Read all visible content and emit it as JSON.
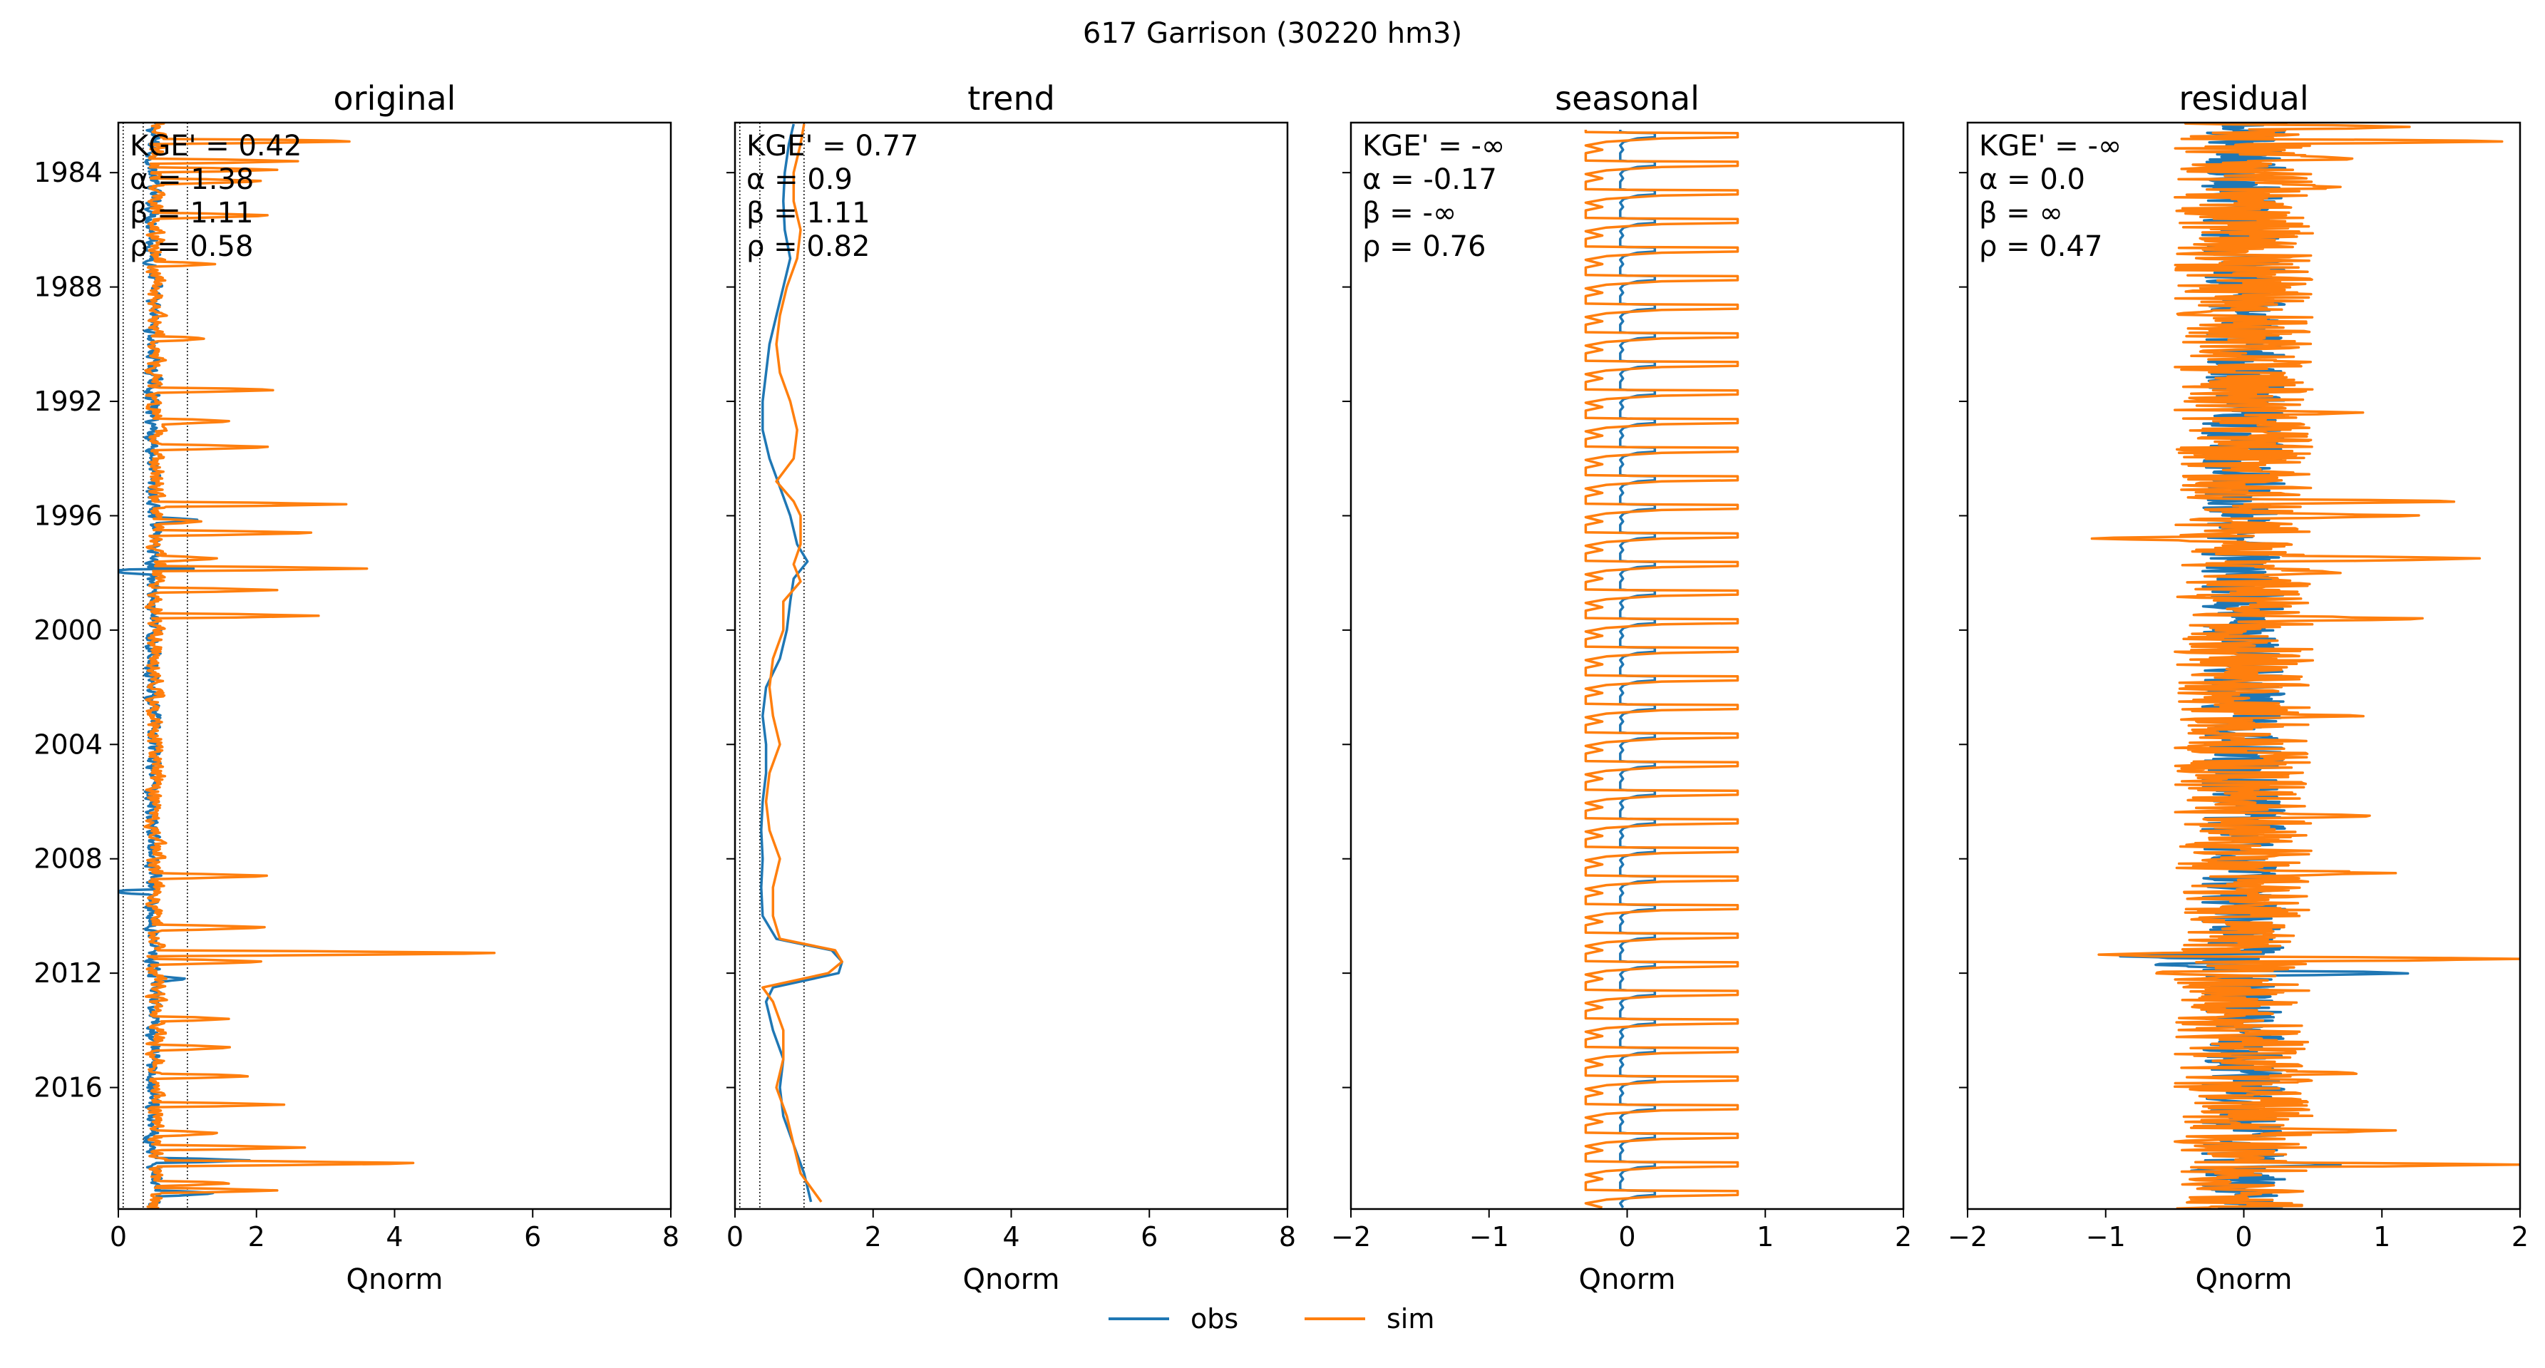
{
  "suptitle": "617  Garrison (30220 hm3)",
  "legend": {
    "obs_label": "obs",
    "sim_label": "sim"
  },
  "colors": {
    "obs": "#1f77b4",
    "sim": "#ff7f0e",
    "axis": "#000000",
    "background": "#ffffff"
  },
  "chart_data": [
    {
      "type": "line",
      "title": "original",
      "xlabel": "Qnorm",
      "ylabel": "",
      "orientation": "vertical-time",
      "xlim": [
        0,
        8
      ],
      "x_ticks": [
        "0",
        "2",
        "4",
        "6",
        "8"
      ],
      "y_ticks": [
        "1984",
        "1988",
        "1992",
        "1996",
        "2000",
        "2004",
        "2008",
        "2012",
        "2016"
      ],
      "ylim": [
        "1982-04",
        "2020-04"
      ],
      "reference_lines_x": [
        0.07,
        0.36,
        1.0
      ],
      "stats": [
        "KGE' = 0.42",
        "α = 1.38",
        "β = 1.11",
        "ρ = 0.58"
      ],
      "series": [
        {
          "name": "obs",
          "profile": "spiky",
          "base": 0.5,
          "spread": 0.16,
          "events": [
            [
              1996.15,
              1.2
            ],
            [
              1997.9,
              1.55
            ],
            [
              1997.95,
              -0.2
            ],
            [
              2009.15,
              -0.2
            ],
            [
              2012.2,
              1.0
            ],
            [
              2018.55,
              1.9
            ],
            [
              2019.7,
              1.45
            ]
          ]
        },
        {
          "name": "sim",
          "profile": "spiky",
          "base": 0.55,
          "spread": 0.2,
          "events": [
            [
              1982.9,
              3.6
            ],
            [
              1983.6,
              2.6
            ],
            [
              1983.9,
              2.3
            ],
            [
              1984.3,
              2.2
            ],
            [
              1985.5,
              2.3
            ],
            [
              1987.2,
              1.4
            ],
            [
              1989.8,
              1.3
            ],
            [
              1991.6,
              2.4
            ],
            [
              1992.7,
              1.7
            ],
            [
              1993.6,
              2.3
            ],
            [
              1995.6,
              3.3
            ],
            [
              1996.2,
              1.2
            ],
            [
              1996.6,
              3.0
            ],
            [
              1997.5,
              1.5
            ],
            [
              1997.85,
              3.6
            ],
            [
              1998.6,
              2.3
            ],
            [
              1999.5,
              2.9
            ],
            [
              2008.6,
              2.3
            ],
            [
              2010.4,
              2.25
            ],
            [
              2011.3,
              5.9
            ],
            [
              2011.6,
              2.2
            ],
            [
              2013.6,
              1.6
            ],
            [
              2014.6,
              1.7
            ],
            [
              2015.6,
              2.0
            ],
            [
              2016.6,
              2.4
            ],
            [
              2017.6,
              1.5
            ],
            [
              2018.1,
              2.7
            ],
            [
              2018.65,
              4.6
            ],
            [
              2019.35,
              1.7
            ],
            [
              2019.6,
              2.3
            ]
          ]
        }
      ]
    },
    {
      "type": "line",
      "title": "trend",
      "xlabel": "Qnorm",
      "ylabel": "",
      "orientation": "vertical-time",
      "xlim": [
        0,
        8
      ],
      "x_ticks": [
        "0",
        "2",
        "4",
        "6",
        "8"
      ],
      "y_ticks": [],
      "ylim": [
        "1982-04",
        "2020-04"
      ],
      "reference_lines_x": [
        0.07,
        0.36,
        1.0
      ],
      "stats": [
        "KGE' = 0.77",
        "α = 0.9",
        "β = 1.11",
        "ρ = 0.82"
      ],
      "series": [
        {
          "name": "obs",
          "profile": "smooth",
          "points": [
            [
              1982.3,
              0.85
            ],
            [
              1983.0,
              0.78
            ],
            [
              1984.0,
              0.72
            ],
            [
              1985.0,
              0.7
            ],
            [
              1986.0,
              0.72
            ],
            [
              1987.0,
              0.8
            ],
            [
              1988.0,
              0.7
            ],
            [
              1989.0,
              0.6
            ],
            [
              1990.0,
              0.5
            ],
            [
              1991.0,
              0.45
            ],
            [
              1992.0,
              0.4
            ],
            [
              1993.0,
              0.4
            ],
            [
              1994.0,
              0.5
            ],
            [
              1995.0,
              0.65
            ],
            [
              1996.0,
              0.8
            ],
            [
              1997.0,
              0.9
            ],
            [
              1997.6,
              1.05
            ],
            [
              1998.2,
              0.85
            ],
            [
              1999.0,
              0.8
            ],
            [
              2000.0,
              0.75
            ],
            [
              2001.0,
              0.65
            ],
            [
              2002.0,
              0.45
            ],
            [
              2003.0,
              0.4
            ],
            [
              2004.0,
              0.45
            ],
            [
              2005.0,
              0.45
            ],
            [
              2006.0,
              0.4
            ],
            [
              2007.0,
              0.38
            ],
            [
              2008.0,
              0.4
            ],
            [
              2009.0,
              0.38
            ],
            [
              2010.0,
              0.4
            ],
            [
              2010.8,
              0.6
            ],
            [
              2011.2,
              1.4
            ],
            [
              2011.6,
              1.55
            ],
            [
              2012.0,
              1.5
            ],
            [
              2012.5,
              0.55
            ],
            [
              2013.0,
              0.45
            ],
            [
              2014.0,
              0.55
            ],
            [
              2015.0,
              0.7
            ],
            [
              2016.0,
              0.65
            ],
            [
              2017.0,
              0.7
            ],
            [
              2018.0,
              0.85
            ],
            [
              2019.0,
              1.0
            ],
            [
              2020.0,
              1.1
            ]
          ]
        },
        {
          "name": "sim",
          "profile": "smooth",
          "points": [
            [
              1982.3,
              1.0
            ],
            [
              1983.0,
              0.95
            ],
            [
              1984.0,
              0.85
            ],
            [
              1985.0,
              0.85
            ],
            [
              1986.0,
              0.95
            ],
            [
              1987.0,
              0.9
            ],
            [
              1988.0,
              0.75
            ],
            [
              1989.0,
              0.65
            ],
            [
              1990.0,
              0.6
            ],
            [
              1991.0,
              0.65
            ],
            [
              1992.0,
              0.8
            ],
            [
              1993.0,
              0.9
            ],
            [
              1994.0,
              0.85
            ],
            [
              1994.8,
              0.6
            ],
            [
              1995.5,
              0.85
            ],
            [
              1996.0,
              0.95
            ],
            [
              1997.0,
              0.95
            ],
            [
              1997.7,
              0.85
            ],
            [
              1998.3,
              0.95
            ],
            [
              1999.0,
              0.7
            ],
            [
              2000.0,
              0.7
            ],
            [
              2001.0,
              0.55
            ],
            [
              2002.0,
              0.5
            ],
            [
              2003.0,
              0.55
            ],
            [
              2004.0,
              0.65
            ],
            [
              2005.0,
              0.5
            ],
            [
              2006.0,
              0.45
            ],
            [
              2007.0,
              0.5
            ],
            [
              2008.0,
              0.65
            ],
            [
              2009.0,
              0.55
            ],
            [
              2010.0,
              0.55
            ],
            [
              2010.8,
              0.65
            ],
            [
              2011.2,
              1.45
            ],
            [
              2011.6,
              1.55
            ],
            [
              2012.0,
              1.35
            ],
            [
              2012.5,
              0.4
            ],
            [
              2013.0,
              0.55
            ],
            [
              2014.0,
              0.7
            ],
            [
              2015.0,
              0.7
            ],
            [
              2016.0,
              0.6
            ],
            [
              2017.0,
              0.75
            ],
            [
              2018.0,
              0.85
            ],
            [
              2019.0,
              0.95
            ],
            [
              2020.0,
              1.25
            ]
          ]
        }
      ]
    },
    {
      "type": "line",
      "title": "seasonal",
      "xlabel": "Qnorm",
      "ylabel": "",
      "orientation": "vertical-time",
      "xlim": [
        -2,
        2
      ],
      "x_ticks": [
        "−2",
        "−1",
        "0",
        "1",
        "2"
      ],
      "y_ticks": [],
      "ylim": [
        "1982-04",
        "2020-04"
      ],
      "reference_lines_x": [],
      "stats": [
        "KGE' = -∞",
        "α = -0.17",
        "β = -∞",
        "ρ = 0.76"
      ],
      "series": [
        {
          "name": "obs",
          "profile": "seasonal",
          "left": -0.05,
          "right": 0.2
        },
        {
          "name": "sim",
          "profile": "seasonal",
          "left": -0.3,
          "right": 0.8
        }
      ]
    },
    {
      "type": "line",
      "title": "residual",
      "xlabel": "Qnorm",
      "ylabel": "",
      "orientation": "vertical-time",
      "xlim": [
        -2,
        2
      ],
      "x_ticks": [
        "−2",
        "−1",
        "0",
        "1",
        "2"
      ],
      "y_ticks": [],
      "ylim": [
        "1982-04",
        "2020-04"
      ],
      "reference_lines_x": [],
      "stats": [
        "KGE' = -∞",
        "α = 0.0",
        "β = ∞",
        "ρ = 0.47"
      ],
      "series": [
        {
          "name": "obs",
          "profile": "noise",
          "base": 0.0,
          "spread": 0.3,
          "events": [
            [
              2011.4,
              -1.0
            ],
            [
              2011.7,
              -0.7
            ],
            [
              2012.0,
              1.3
            ],
            [
              2018.7,
              0.7
            ],
            [
              2018.9,
              -0.4
            ]
          ]
        },
        {
          "name": "sim",
          "profile": "noise",
          "base": 0.0,
          "spread": 0.5,
          "events": [
            [
              1982.4,
              1.2
            ],
            [
              1982.9,
              2.0
            ],
            [
              1983.5,
              0.9
            ],
            [
              1984.5,
              0.7
            ],
            [
              1992.4,
              0.9
            ],
            [
              1995.5,
              1.65
            ],
            [
              1996.0,
              1.4
            ],
            [
              1996.8,
              -1.1
            ],
            [
              1997.5,
              1.85
            ],
            [
              1998.0,
              0.7
            ],
            [
              1999.6,
              1.4
            ],
            [
              2003.0,
              0.9
            ],
            [
              2006.5,
              1.0
            ],
            [
              2008.5,
              1.1
            ],
            [
              2011.35,
              -1.05
            ],
            [
              2011.5,
              2.0
            ],
            [
              2012.0,
              -0.7
            ],
            [
              2015.5,
              0.9
            ],
            [
              2017.5,
              1.1
            ],
            [
              2018.7,
              2.0
            ],
            [
              2019.2,
              -0.4
            ]
          ]
        }
      ]
    }
  ]
}
